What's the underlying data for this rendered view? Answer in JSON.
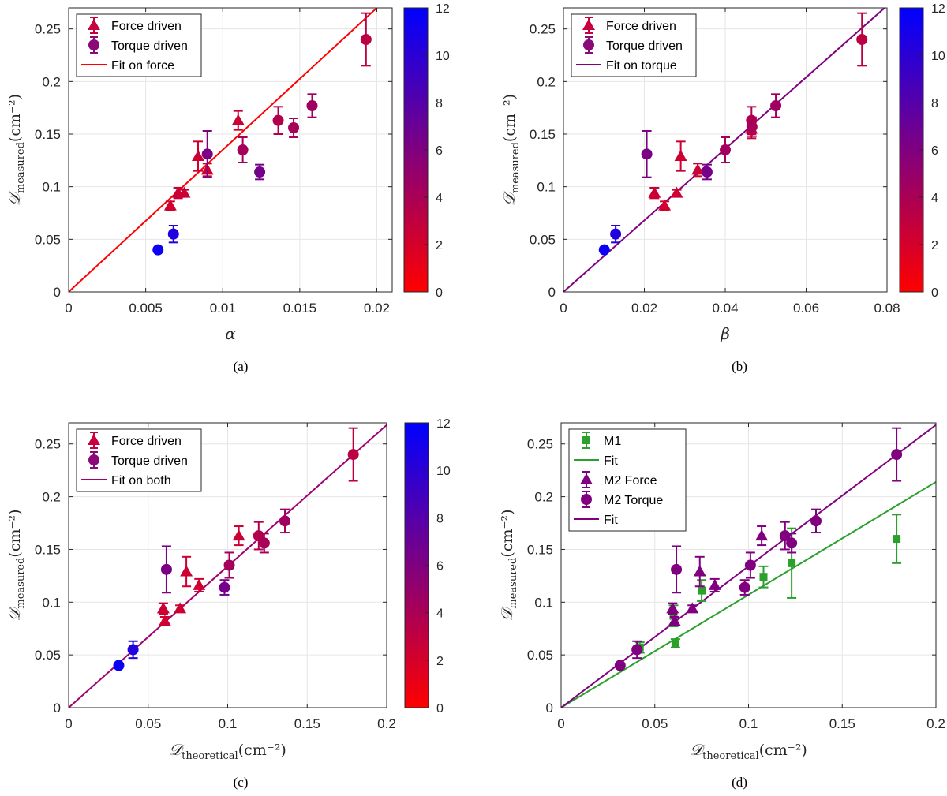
{
  "colors": {
    "colormap_low": "#ff0000",
    "colormap_high": "#0000ff",
    "fit_force": "#ff0000",
    "fit_torque": "#800080",
    "fit_both": "#a0006e",
    "m1": "#2ca02c",
    "m2": "#800080"
  },
  "chart_data": [
    {
      "type": "scatter",
      "caption": "(a)",
      "xlabel": "α",
      "ylabel_main": "𝒟",
      "ylabel_sub": "measured",
      "ylabel_unit": "(cm⁻²)",
      "xlim": [
        0,
        0.021
      ],
      "ylim": [
        0,
        0.27
      ],
      "xticks": [
        0,
        0.005,
        0.01,
        0.015,
        0.02
      ],
      "xtick_labels": [
        "0",
        "0.005",
        "0.01",
        "0.015",
        "0.02"
      ],
      "yticks": [
        0,
        0.05,
        0.1,
        0.15,
        0.2,
        0.25
      ],
      "ytick_labels": [
        "0",
        "0.05",
        "0.1",
        "0.15",
        "0.2",
        "0.25"
      ],
      "colorbar": {
        "range": [
          0,
          12
        ],
        "ticks": [
          0,
          2,
          4,
          6,
          8,
          10,
          12
        ],
        "tick_labels": [
          "0",
          "2",
          "4",
          "6",
          "8",
          "10",
          "12"
        ]
      },
      "legend": [
        {
          "label": "Force driven",
          "kind": "triangle"
        },
        {
          "label": "Torque driven",
          "kind": "circle"
        },
        {
          "label": "Fit on force",
          "kind": "line",
          "color": "#ff0000"
        }
      ],
      "series": [
        {
          "name": "Force driven",
          "marker": "triangle",
          "points": [
            {
              "x": 0.0066,
              "y": 0.082,
              "err": 0.004,
              "c": 2.2
            },
            {
              "x": 0.0071,
              "y": 0.094,
              "err": 0.005,
              "c": 2.5
            },
            {
              "x": 0.0075,
              "y": 0.094,
              "err": 0.003,
              "c": 2.4
            },
            {
              "x": 0.0084,
              "y": 0.129,
              "err": 0.014,
              "c": 2.4
            },
            {
              "x": 0.009,
              "y": 0.116,
              "err": 0.006,
              "c": 2.4
            },
            {
              "x": 0.011,
              "y": 0.163,
              "err": 0.009,
              "c": 2.4
            }
          ]
        },
        {
          "name": "Torque driven",
          "marker": "circle",
          "points": [
            {
              "x": 0.0058,
              "y": 0.04,
              "err": 0.0,
              "c": 11.5
            },
            {
              "x": 0.0068,
              "y": 0.055,
              "err": 0.008,
              "c": 10.5
            },
            {
              "x": 0.009,
              "y": 0.131,
              "err": 0.022,
              "c": 6.2
            },
            {
              "x": 0.0113,
              "y": 0.135,
              "err": 0.012,
              "c": 4.3
            },
            {
              "x": 0.0124,
              "y": 0.114,
              "err": 0.007,
              "c": 6.5
            },
            {
              "x": 0.0136,
              "y": 0.163,
              "err": 0.013,
              "c": 3.6
            },
            {
              "x": 0.0146,
              "y": 0.156,
              "err": 0.009,
              "c": 4.2
            },
            {
              "x": 0.0158,
              "y": 0.177,
              "err": 0.011,
              "c": 4.5
            },
            {
              "x": 0.0193,
              "y": 0.24,
              "err": 0.025,
              "c": 3.2
            }
          ]
        }
      ],
      "fits": [
        {
          "name": "Fit on force",
          "slope": 13.5,
          "color": "#ff0000"
        }
      ]
    },
    {
      "type": "scatter",
      "caption": "(b)",
      "xlabel": "β",
      "ylabel_main": "𝒟",
      "ylabel_sub": "measured",
      "ylabel_unit": "(cm⁻²)",
      "xlim": [
        0,
        0.08
      ],
      "ylim": [
        0,
        0.27
      ],
      "xticks": [
        0,
        0.02,
        0.04,
        0.06,
        0.08
      ],
      "xtick_labels": [
        "0",
        "0.02",
        "0.04",
        "0.06",
        "0.08"
      ],
      "yticks": [
        0,
        0.05,
        0.1,
        0.15,
        0.2,
        0.25
      ],
      "ytick_labels": [
        "0",
        "0.05",
        "0.1",
        "0.15",
        "0.2",
        "0.25"
      ],
      "colorbar": {
        "range": [
          0,
          12
        ],
        "ticks": [
          0,
          2,
          4,
          6,
          8,
          10,
          12
        ],
        "tick_labels": [
          "0",
          "2",
          "4",
          "6",
          "8",
          "10",
          "12"
        ]
      },
      "legend": [
        {
          "label": "Force driven",
          "kind": "triangle"
        },
        {
          "label": "Torque driven",
          "kind": "circle"
        },
        {
          "label": "Fit on torque",
          "kind": "line",
          "color": "#800080"
        }
      ],
      "series": [
        {
          "name": "Force driven",
          "marker": "triangle",
          "points": [
            {
              "x": 0.0225,
              "y": 0.094,
              "err": 0.005,
              "c": 2.5
            },
            {
              "x": 0.025,
              "y": 0.082,
              "err": 0.004,
              "c": 2.2
            },
            {
              "x": 0.028,
              "y": 0.094,
              "err": 0.003,
              "c": 2.4
            },
            {
              "x": 0.029,
              "y": 0.129,
              "err": 0.014,
              "c": 2.4
            },
            {
              "x": 0.0332,
              "y": 0.116,
              "err": 0.006,
              "c": 2.4
            },
            {
              "x": 0.0465,
              "y": 0.155,
              "err": 0.009,
              "c": 2.4
            }
          ]
        },
        {
          "name": "Torque driven",
          "marker": "circle",
          "points": [
            {
              "x": 0.0101,
              "y": 0.04,
              "err": 0.0,
              "c": 11.5
            },
            {
              "x": 0.0129,
              "y": 0.055,
              "err": 0.008,
              "c": 10.5
            },
            {
              "x": 0.0206,
              "y": 0.131,
              "err": 0.022,
              "c": 6.2
            },
            {
              "x": 0.0355,
              "y": 0.114,
              "err": 0.007,
              "c": 6.5
            },
            {
              "x": 0.04,
              "y": 0.135,
              "err": 0.012,
              "c": 4.3
            },
            {
              "x": 0.0465,
              "y": 0.163,
              "err": 0.013,
              "c": 3.6
            },
            {
              "x": 0.0466,
              "y": 0.157,
              "err": 0.009,
              "c": 4.2
            },
            {
              "x": 0.0525,
              "y": 0.177,
              "err": 0.011,
              "c": 4.5
            },
            {
              "x": 0.0738,
              "y": 0.24,
              "err": 0.025,
              "c": 3.2
            }
          ]
        }
      ],
      "fits": [
        {
          "name": "Fit on torque",
          "slope": 3.4,
          "color": "#800080"
        }
      ]
    },
    {
      "type": "scatter",
      "caption": "(c)",
      "xlabel_main": "𝒟",
      "xlabel_sub": "theoretical",
      "xlabel_unit": "(cm⁻²)",
      "ylabel_main": "𝒟",
      "ylabel_sub": "measured",
      "ylabel_unit": "(cm⁻²)",
      "xlim": [
        0,
        0.2
      ],
      "ylim": [
        0,
        0.27
      ],
      "xticks": [
        0,
        0.05,
        0.1,
        0.15,
        0.2
      ],
      "xtick_labels": [
        "0",
        "0.05",
        "0.1",
        "0.15",
        "0.2"
      ],
      "yticks": [
        0,
        0.05,
        0.1,
        0.15,
        0.2,
        0.25
      ],
      "ytick_labels": [
        "0",
        "0.05",
        "0.1",
        "0.15",
        "0.2",
        "0.25"
      ],
      "colorbar": {
        "range": [
          0,
          12
        ],
        "ticks": [
          0,
          2,
          4,
          6,
          8,
          10,
          12
        ],
        "tick_labels": [
          "0",
          "2",
          "4",
          "6",
          "8",
          "10",
          "12"
        ]
      },
      "legend": [
        {
          "label": "Force driven",
          "kind": "triangle"
        },
        {
          "label": "Torque driven",
          "kind": "circle"
        },
        {
          "label": "Fit on both",
          "kind": "line",
          "color": "#a0006e"
        }
      ],
      "series": [
        {
          "name": "Force driven",
          "marker": "triangle",
          "points": [
            {
              "x": 0.0595,
              "y": 0.094,
              "err": 0.005,
              "c": 2.5
            },
            {
              "x": 0.0605,
              "y": 0.082,
              "err": 0.004,
              "c": 2.2
            },
            {
              "x": 0.07,
              "y": 0.094,
              "err": 0.003,
              "c": 2.4
            },
            {
              "x": 0.074,
              "y": 0.129,
              "err": 0.014,
              "c": 2.4
            },
            {
              "x": 0.082,
              "y": 0.116,
              "err": 0.006,
              "c": 2.4
            },
            {
              "x": 0.107,
              "y": 0.163,
              "err": 0.009,
              "c": 2.4
            }
          ]
        },
        {
          "name": "Torque driven",
          "marker": "circle",
          "points": [
            {
              "x": 0.0315,
              "y": 0.04,
              "err": 0.0,
              "c": 11.5
            },
            {
              "x": 0.0405,
              "y": 0.055,
              "err": 0.008,
              "c": 10.5
            },
            {
              "x": 0.0615,
              "y": 0.131,
              "err": 0.022,
              "c": 6.2
            },
            {
              "x": 0.098,
              "y": 0.114,
              "err": 0.007,
              "c": 6.5
            },
            {
              "x": 0.101,
              "y": 0.135,
              "err": 0.012,
              "c": 4.3
            },
            {
              "x": 0.1195,
              "y": 0.163,
              "err": 0.013,
              "c": 3.6
            },
            {
              "x": 0.123,
              "y": 0.156,
              "err": 0.009,
              "c": 4.2
            },
            {
              "x": 0.136,
              "y": 0.177,
              "err": 0.011,
              "c": 4.5
            },
            {
              "x": 0.179,
              "y": 0.24,
              "err": 0.025,
              "c": 3.2
            }
          ]
        }
      ],
      "fits": [
        {
          "name": "Fit on both",
          "slope": 1.34,
          "color": "#a0006e"
        }
      ]
    },
    {
      "type": "scatter",
      "caption": "(d)",
      "xlabel_main": "𝒟",
      "xlabel_sub": "theoretical",
      "xlabel_unit": "(cm⁻²)",
      "ylabel_main": "𝒟",
      "ylabel_sub": "measured",
      "ylabel_unit": "(cm⁻²)",
      "xlim": [
        0,
        0.2
      ],
      "ylim": [
        0,
        0.27
      ],
      "xticks": [
        0,
        0.05,
        0.1,
        0.15,
        0.2
      ],
      "xtick_labels": [
        "0",
        "0.05",
        "0.1",
        "0.15",
        "0.2"
      ],
      "yticks": [
        0,
        0.05,
        0.1,
        0.15,
        0.2,
        0.25
      ],
      "ytick_labels": [
        "0",
        "0.05",
        "0.1",
        "0.15",
        "0.2",
        "0.25"
      ],
      "legend": [
        {
          "label": "M1",
          "kind": "square",
          "color": "#2ca02c"
        },
        {
          "label": "Fit",
          "kind": "line",
          "color": "#2ca02c"
        },
        {
          "label": "M2 Force",
          "kind": "triangle",
          "color": "#800080"
        },
        {
          "label": "M2 Torque",
          "kind": "circle",
          "color": "#800080"
        },
        {
          "label": "Fit",
          "kind": "line",
          "color": "#800080"
        }
      ],
      "series": [
        {
          "name": "M1",
          "marker": "square",
          "color": "#2ca02c",
          "points": [
            {
              "x": 0.042,
              "y": 0.057,
              "err": 0.005
            },
            {
              "x": 0.06,
              "y": 0.087,
              "err": 0.01
            },
            {
              "x": 0.061,
              "y": 0.061,
              "err": 0.004
            },
            {
              "x": 0.075,
              "y": 0.111,
              "err": 0.01
            },
            {
              "x": 0.108,
              "y": 0.124,
              "err": 0.01
            },
            {
              "x": 0.123,
              "y": 0.137,
              "err": 0.033
            },
            {
              "x": 0.179,
              "y": 0.16,
              "err": 0.023
            }
          ]
        },
        {
          "name": "M2 Force",
          "marker": "triangle",
          "color": "#800080",
          "points": [
            {
              "x": 0.0595,
              "y": 0.094,
              "err": 0.005
            },
            {
              "x": 0.0605,
              "y": 0.082,
              "err": 0.004
            },
            {
              "x": 0.07,
              "y": 0.094,
              "err": 0.003
            },
            {
              "x": 0.074,
              "y": 0.129,
              "err": 0.014
            },
            {
              "x": 0.082,
              "y": 0.116,
              "err": 0.006
            },
            {
              "x": 0.107,
              "y": 0.163,
              "err": 0.009
            }
          ]
        },
        {
          "name": "M2 Torque",
          "marker": "circle",
          "color": "#800080",
          "points": [
            {
              "x": 0.0315,
              "y": 0.04,
              "err": 0.0
            },
            {
              "x": 0.0405,
              "y": 0.055,
              "err": 0.008
            },
            {
              "x": 0.0615,
              "y": 0.131,
              "err": 0.022
            },
            {
              "x": 0.098,
              "y": 0.114,
              "err": 0.007
            },
            {
              "x": 0.101,
              "y": 0.135,
              "err": 0.012
            },
            {
              "x": 0.1195,
              "y": 0.163,
              "err": 0.013
            },
            {
              "x": 0.123,
              "y": 0.156,
              "err": 0.009
            },
            {
              "x": 0.136,
              "y": 0.177,
              "err": 0.011
            },
            {
              "x": 0.179,
              "y": 0.24,
              "err": 0.025
            }
          ]
        }
      ],
      "fits": [
        {
          "name": "Fit (M1)",
          "slope": 1.07,
          "color": "#2ca02c"
        },
        {
          "name": "Fit (M2)",
          "slope": 1.34,
          "color": "#800080"
        }
      ]
    }
  ]
}
